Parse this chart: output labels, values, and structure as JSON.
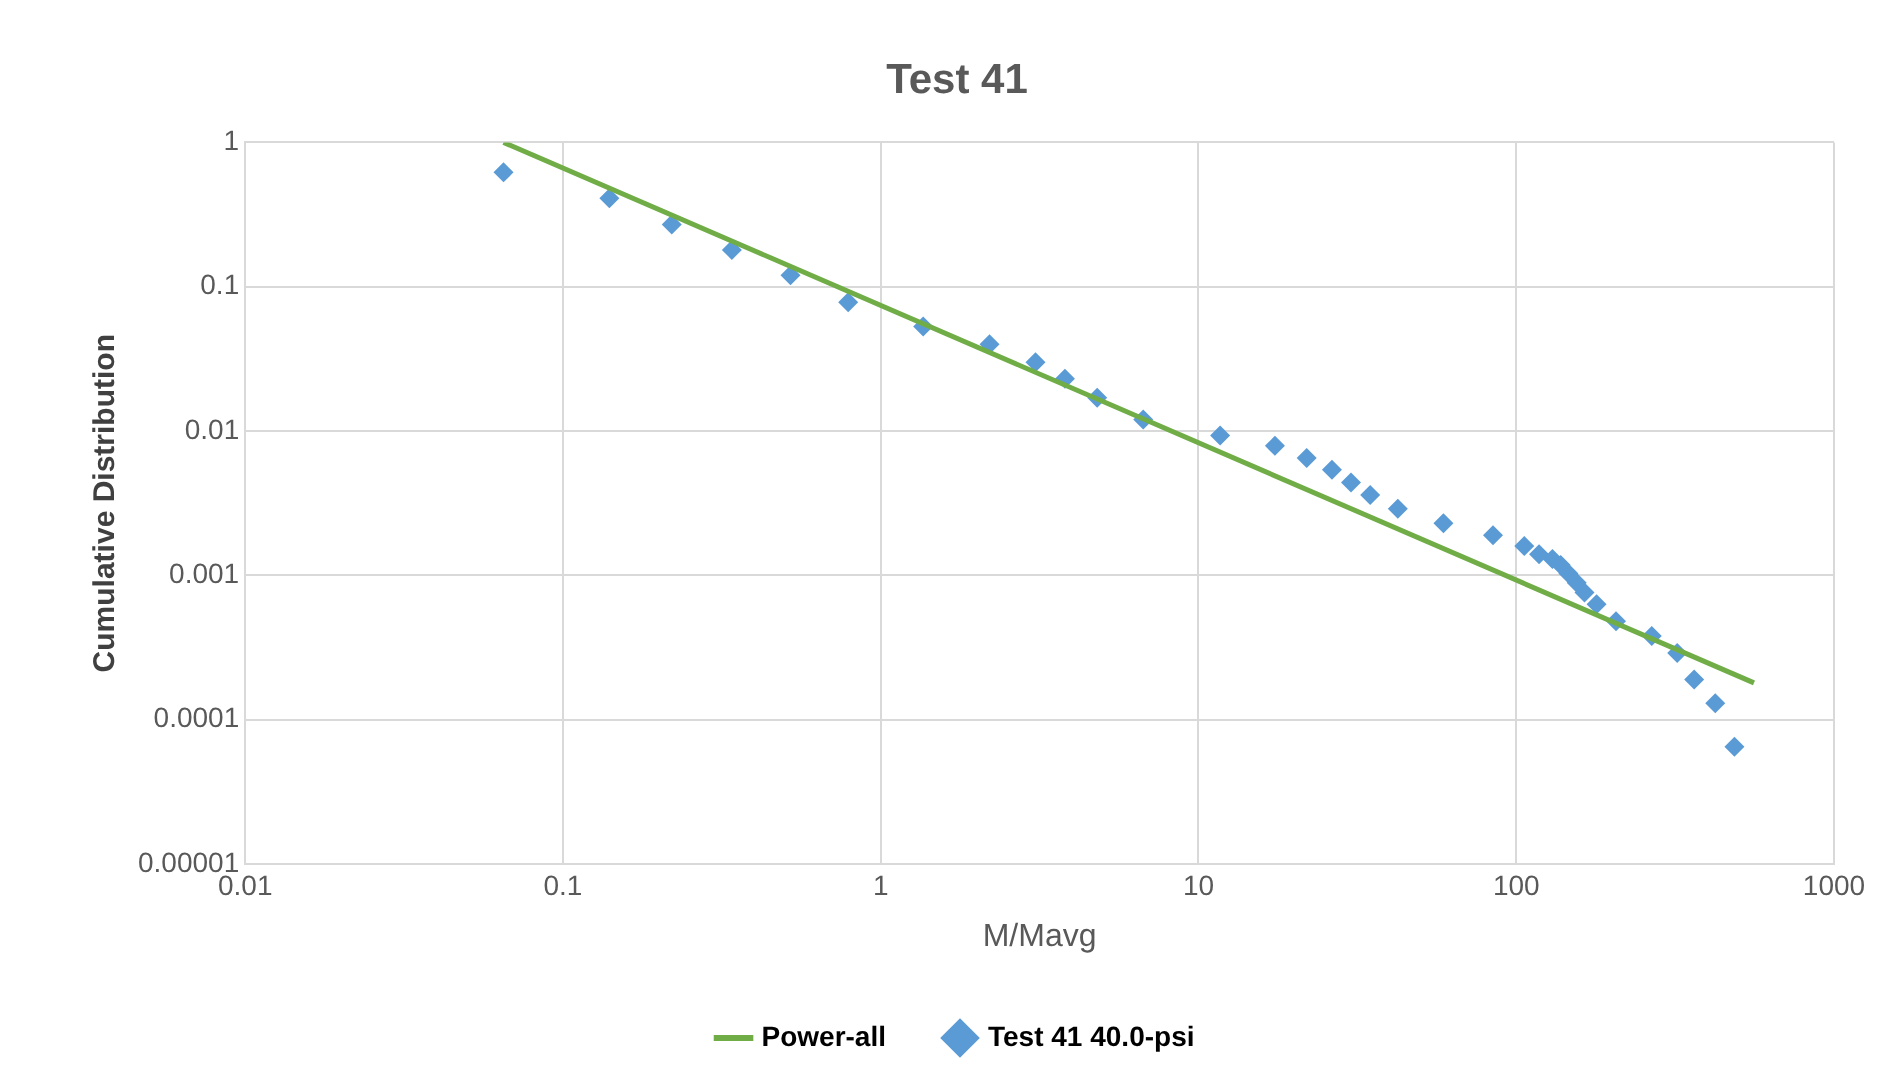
{
  "chart_data": {
    "type": "scatter",
    "title": "Test 41",
    "xlabel": "M/Mavg",
    "ylabel": "Cumulative Distribution",
    "log": "xy",
    "grid": true,
    "legend": "bottom",
    "xlim": [
      0.01,
      1000
    ],
    "xticks": [
      0.01,
      0.1,
      1,
      10,
      100,
      1000
    ],
    "ylim": [
      1e-05,
      1
    ],
    "yticks": [
      {
        "value": 1e-05,
        "label": "0.00001"
      },
      0.0001,
      0.001,
      0.01,
      0.1,
      1
    ],
    "series": [
      {
        "name": "Power-all",
        "type": "line",
        "color": "#70ad47",
        "marker": "none",
        "x": [
          0.065,
          560
        ],
        "values": [
          1,
          0.00018
        ]
      },
      {
        "name": "Test 41 40.0-psi",
        "type": "scatter",
        "color": "#5b9bd5",
        "marker": "diamond",
        "x": [
          0.065,
          0.14,
          0.22,
          0.34,
          0.52,
          0.79,
          1.36,
          2.2,
          3.07,
          3.8,
          4.8,
          6.7,
          11.7,
          17.4,
          21.9,
          26.3,
          30.2,
          34.7,
          42.4,
          59,
          84.5,
          106,
          118,
          130,
          138,
          146,
          155,
          164,
          179,
          206,
          267,
          321,
          363,
          423,
          486
        ],
        "values": [
          0.62,
          0.41,
          0.27,
          0.18,
          0.12,
          0.078,
          0.053,
          0.04,
          0.03,
          0.023,
          0.017,
          0.012,
          0.0093,
          0.0079,
          0.0065,
          0.0054,
          0.0044,
          0.0036,
          0.0029,
          0.0023,
          0.0019,
          0.0016,
          0.0014,
          0.0013,
          0.00118,
          0.00103,
          0.00089,
          0.00076,
          0.00063,
          0.00048,
          0.00038,
          0.00029,
          0.00019,
          0.00013,
          6.5e-05
        ]
      }
    ]
  }
}
